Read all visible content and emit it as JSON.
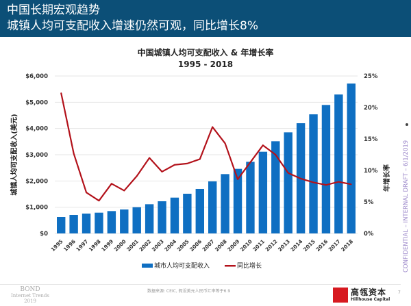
{
  "header": {
    "title": "中国长期宏观趋势",
    "subtitle": "城镇人均可支配收入增速仍然可观，同比增长8%"
  },
  "chart_data": {
    "type": "bar+line",
    "title": "中国城镇人均可支配收入 & 年增长率",
    "subtitle": "1995 - 2018",
    "ylabel": "城镇人均可支配收入(美元)",
    "y2label": "年增长率",
    "ylim": [
      0,
      6000
    ],
    "y2lim": [
      0,
      25
    ],
    "yticks": [
      "$0",
      "$1,000",
      "$2,000",
      "$3,000",
      "$4,000",
      "$5,000",
      "$6,000"
    ],
    "y2ticks": [
      "0%",
      "5%",
      "10%",
      "15%",
      "20%",
      "25%"
    ],
    "grid": true,
    "legend_position": "bottom",
    "categories": [
      "1995",
      "1996",
      "1997",
      "1998",
      "1999",
      "2000",
      "2001",
      "2002",
      "2003",
      "2004",
      "2005",
      "2006",
      "2007",
      "2008",
      "2009",
      "2010",
      "2011",
      "2012",
      "2013",
      "2014",
      "2015",
      "2016",
      "2017",
      "2018"
    ],
    "series": [
      {
        "name": "城市人均可支配收入",
        "type": "bar",
        "axis": "left",
        "color": "#0f6fc2",
        "values": [
          626,
          704,
          757,
          791,
          852,
          913,
          1000,
          1113,
          1226,
          1365,
          1513,
          1696,
          1983,
          2261,
          2461,
          2730,
          3113,
          3513,
          3852,
          4200,
          4539,
          4896,
          5296,
          5713
        ]
      },
      {
        "name": "同比增长",
        "type": "line",
        "axis": "right",
        "color": "#b3121b",
        "values": [
          22.3,
          12.7,
          6.5,
          5.2,
          7.9,
          6.8,
          9.1,
          12.0,
          9.8,
          10.9,
          11.1,
          11.8,
          16.9,
          14.3,
          8.6,
          11.3,
          14.0,
          12.5,
          9.6,
          8.7,
          8.1,
          7.7,
          8.2,
          7.8
        ]
      }
    ]
  },
  "footer": {
    "bond_line1": "BOND",
    "bond_line2": "Internet Trends",
    "bond_line3": "2019",
    "source": "数据来源: CEIC, 假设美元人民币汇率等于6.9",
    "logo_cn": "高瓴资本",
    "logo_en": "Hillhouse Capital",
    "page": "7",
    "confidential": "CONFIDENTIAL – INTERNAL DRAFT – 6/1/2019"
  }
}
